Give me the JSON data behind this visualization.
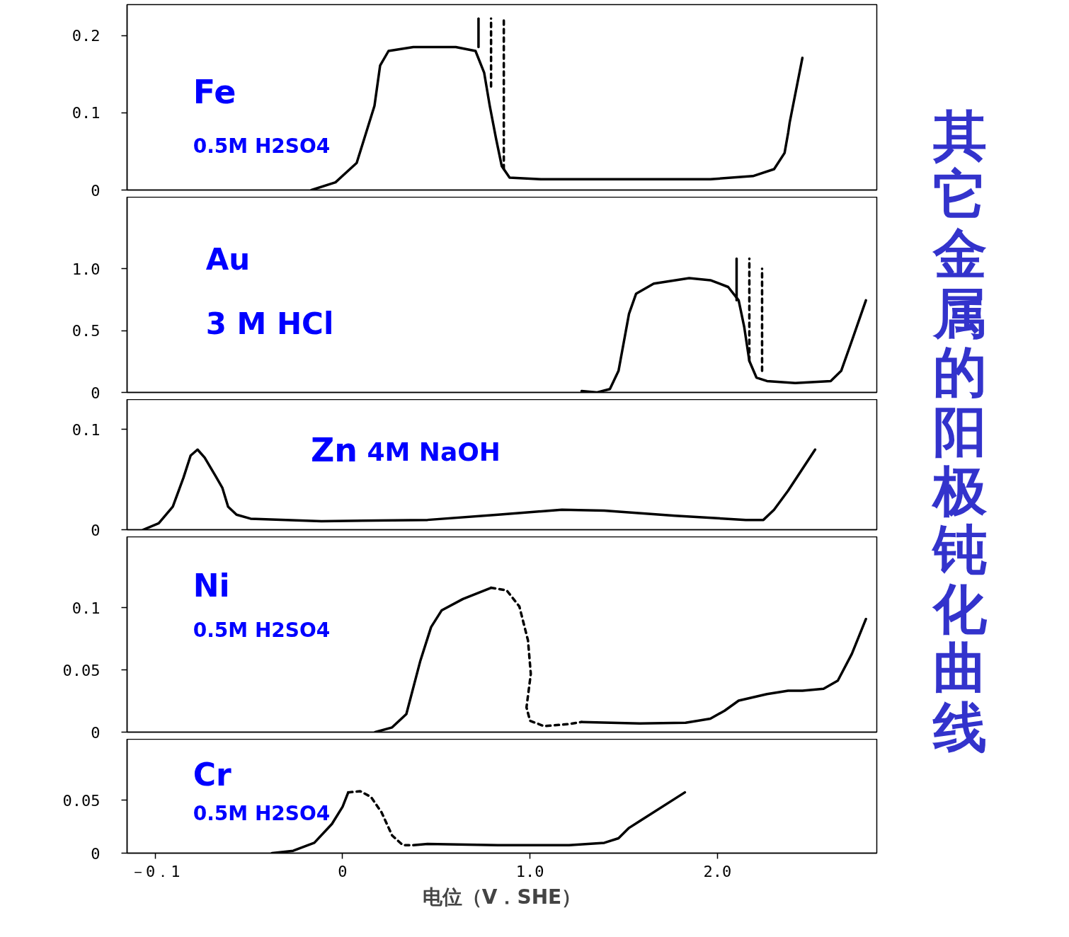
{
  "chart_data": [
    {
      "type": "line",
      "title": "其它金属的阳极钝化曲线",
      "annotations": [
        "Fe",
        "0.5M H2SO4"
      ],
      "xlim": [
        -1.15,
        2.85
      ],
      "ylim": [
        0,
        0.24
      ],
      "yticks": [
        0,
        0.1,
        0.2
      ],
      "tick_labels": "y",
      "series": [
        {
          "color": "#000000",
          "line_style": "solid",
          "x": [
            -0.166,
            -0.038,
            0.075,
            0.17,
            0.2,
            0.245,
            0.377,
            0.604,
            0.709,
            0.755,
            0.785,
            0.819,
            0.849,
            0.891,
            1.057,
            1.585,
            1.962,
            2.189,
            2.302,
            2.358,
            2.377,
            2.385,
            2.453
          ],
          "values": [
            0,
            0.01,
            0.035,
            0.109,
            0.161,
            0.18,
            0.185,
            0.185,
            0.18,
            0.152,
            0.109,
            0.066,
            0.031,
            0.016,
            0.014,
            0.014,
            0.014,
            0.018,
            0.027,
            0.048,
            0.074,
            0.087,
            0.171
          ]
        },
        {
          "color": "#000000",
          "line_style": "solid",
          "x": [
            0.725,
            0.725
          ],
          "values": [
            0.185,
            0.222
          ]
        },
        {
          "color": "#000000",
          "line_style": "dashed",
          "x": [
            0.792,
            0.792
          ],
          "values": [
            0.134,
            0.222
          ]
        },
        {
          "color": "#000000",
          "line_style": "dashed",
          "x": [
            0.86,
            0.86
          ],
          "values": [
            0.027,
            0.222
          ]
        }
      ]
    },
    {
      "type": "line",
      "annotations": [
        "Au",
        "3 M HCl"
      ],
      "xlim": [
        -1.15,
        2.85
      ],
      "ylim": [
        0,
        1.58
      ],
      "yticks": [
        0,
        0.5,
        {
          "value": 1,
          "label": "1.0"
        }
      ],
      "tick_labels": "y",
      "series": [
        {
          "color": "#000000",
          "line_style": "solid",
          "x": [
            1.275,
            1.358,
            1.426,
            1.472,
            1.528,
            1.566,
            1.66,
            1.849,
            1.962,
            2.057,
            2.113,
            2.143,
            2.17,
            2.208,
            2.264,
            2.415,
            2.604,
            2.66,
            2.717,
            2.792
          ],
          "values": [
            0.011,
            0,
            0.027,
            0.174,
            0.636,
            0.799,
            0.88,
            0.924,
            0.908,
            0.853,
            0.745,
            0.527,
            0.255,
            0.12,
            0.092,
            0.076,
            0.092,
            0.174,
            0.418,
            0.745
          ]
        },
        {
          "color": "#000000",
          "line_style": "solid",
          "x": [
            2.102,
            2.102
          ],
          "values": [
            0.745,
            1.082
          ]
        },
        {
          "color": "#000000",
          "line_style": "dashed",
          "x": [
            2.17,
            2.17
          ],
          "values": [
            0.255,
            1.082
          ]
        },
        {
          "color": "#000000",
          "line_style": "dashed",
          "x": [
            2.238,
            2.238
          ],
          "values": [
            0.174,
            1.0
          ]
        }
      ]
    },
    {
      "type": "line",
      "annotations": [
        "Zn",
        "4M NaOH"
      ],
      "xlim": [
        -1.15,
        2.85
      ],
      "ylim": [
        0,
        0.13
      ],
      "yticks": [
        0,
        0.1
      ],
      "tick_labels": "y",
      "series": [
        {
          "color": "#000000",
          "line_style": "solid",
          "x": [
            -1.064,
            -0.981,
            -0.906,
            -0.849,
            -0.811,
            -0.774,
            -0.736,
            -0.679,
            -0.642,
            -0.611,
            -0.566,
            -0.491,
            -0.113,
            0.453,
            0.83,
            1.17,
            1.396,
            1.774,
            2.151,
            2.245,
            2.302,
            2.377,
            2.521
          ],
          "values": [
            0,
            0.0065,
            0.023,
            0.052,
            0.074,
            0.08,
            0.072,
            0.054,
            0.042,
            0.023,
            0.015,
            0.011,
            0.0085,
            0.0098,
            0.015,
            0.02,
            0.019,
            0.014,
            0.0098,
            0.0098,
            0.02,
            0.039,
            0.08
          ]
        }
      ]
    },
    {
      "type": "line",
      "annotations": [
        "Ni",
        "0.5M H2SO4"
      ],
      "xlim": [
        -1.15,
        2.85
      ],
      "ylim": [
        0,
        0.157
      ],
      "yticks": [
        0,
        0.05,
        0.1
      ],
      "tick_labels": "y",
      "series": [
        {
          "color": "#000000",
          "line_style": "solid",
          "x": [
            0.174,
            0.264,
            0.34,
            0.415,
            0.472,
            0.528,
            0.642,
            0.792
          ],
          "values": [
            0,
            0.0038,
            0.0145,
            0.0575,
            0.0844,
            0.0978,
            0.107,
            0.116
          ]
        },
        {
          "color": "#000000",
          "line_style": "dashed",
          "x": [
            0.792,
            0.875,
            0.943,
            0.989,
            1.004,
            0.981,
            1.0,
            1.075,
            1.208,
            1.275
          ],
          "values": [
            0.116,
            0.114,
            0.101,
            0.0737,
            0.0468,
            0.0199,
            0.0091,
            0.0048,
            0.0065,
            0.0081
          ]
        },
        {
          "color": "#000000",
          "line_style": "solid",
          "x": [
            1.275,
            1.585,
            1.83,
            1.962,
            2.038,
            2.113,
            2.264,
            2.377,
            2.453,
            2.566,
            2.642,
            2.717,
            2.792
          ],
          "values": [
            0.0081,
            0.007,
            0.0075,
            0.0108,
            0.0172,
            0.0253,
            0.0306,
            0.0333,
            0.0333,
            0.0349,
            0.0414,
            0.0629,
            0.0909
          ]
        }
      ]
    },
    {
      "type": "line",
      "annotations": [
        "Cr",
        "0.5M  H2SO4"
      ],
      "xlabel": "电位（V．SHE）",
      "xlim": [
        -1.15,
        2.85
      ],
      "xticks": [
        {
          "value": -1,
          "label": "－0．1"
        },
        0,
        {
          "value": 1,
          "label": "1.0"
        },
        {
          "value": 2,
          "label": "2.0"
        }
      ],
      "ylim": [
        0,
        0.108
      ],
      "yticks": [
        0,
        0.05
      ],
      "series": [
        {
          "color": "#000000",
          "line_style": "solid",
          "x": [
            -0.377,
            -0.264,
            -0.151,
            -0.057,
            0,
            0.03
          ],
          "values": [
            0,
            0.0022,
            0.0098,
            0.0277,
            0.044,
            0.0576
          ]
        },
        {
          "color": "#000000",
          "line_style": "dashed",
          "x": [
            0.03,
            0.094,
            0.151,
            0.208,
            0.264,
            0.321,
            0.377
          ],
          "values": [
            0.0576,
            0.0587,
            0.0533,
            0.0386,
            0.0168,
            0.0076,
            0.0076
          ]
        },
        {
          "color": "#000000",
          "line_style": "solid",
          "x": [
            0.377,
            0.453,
            0.83,
            1.208,
            1.396,
            1.472,
            1.528,
            1.585,
            1.826
          ],
          "values": [
            0.0076,
            0.0087,
            0.0076,
            0.0076,
            0.0098,
            0.0141,
            0.0239,
            0.0304,
            0.0576
          ]
        }
      ]
    }
  ]
}
